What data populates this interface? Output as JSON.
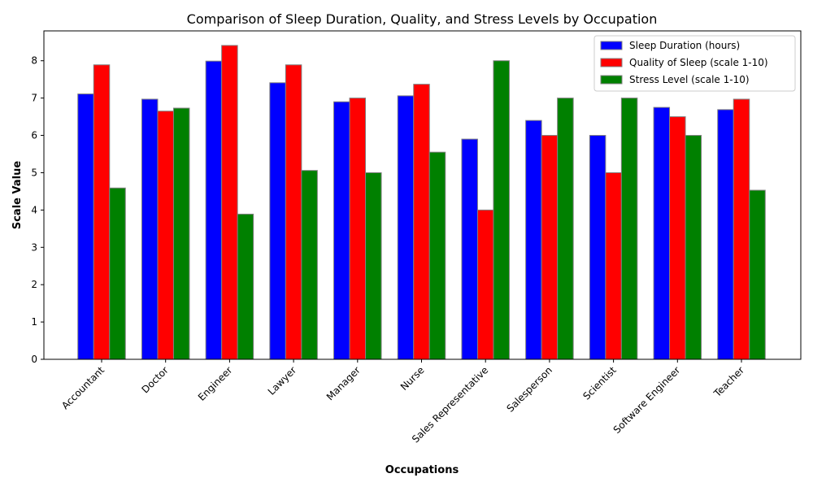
{
  "chart_data": {
    "type": "bar",
    "title": "Comparison of Sleep Duration, Quality, and Stress Levels by Occupation",
    "xlabel": "Occupations",
    "ylabel": "Scale Value",
    "ylim": [
      0,
      8.8
    ],
    "yticks": [
      0,
      1,
      2,
      3,
      4,
      5,
      6,
      7,
      8
    ],
    "grid": false,
    "legend_position": "top-right",
    "categories": [
      "Accountant",
      "Doctor",
      "Engineer",
      "Lawyer",
      "Manager",
      "Nurse",
      "Sales Representative",
      "Salesperson",
      "Scientist",
      "Software Engineer",
      "Teacher"
    ],
    "series": [
      {
        "name": "Sleep Duration (hours)",
        "color": "#0000ff",
        "values": [
          7.11,
          6.97,
          7.99,
          7.41,
          6.9,
          7.06,
          5.9,
          6.4,
          6.0,
          6.75,
          6.69
        ]
      },
      {
        "name": "Quality of Sleep (scale 1-10)",
        "color": "#ff0000",
        "values": [
          7.89,
          6.65,
          8.41,
          7.89,
          7.0,
          7.37,
          4.0,
          6.0,
          5.0,
          6.5,
          6.97
        ]
      },
      {
        "name": "Stress Level (scale 1-10)",
        "color": "#008000",
        "values": [
          4.59,
          6.73,
          3.89,
          5.06,
          5.0,
          5.55,
          8.0,
          7.0,
          7.0,
          6.0,
          4.53
        ]
      }
    ]
  }
}
